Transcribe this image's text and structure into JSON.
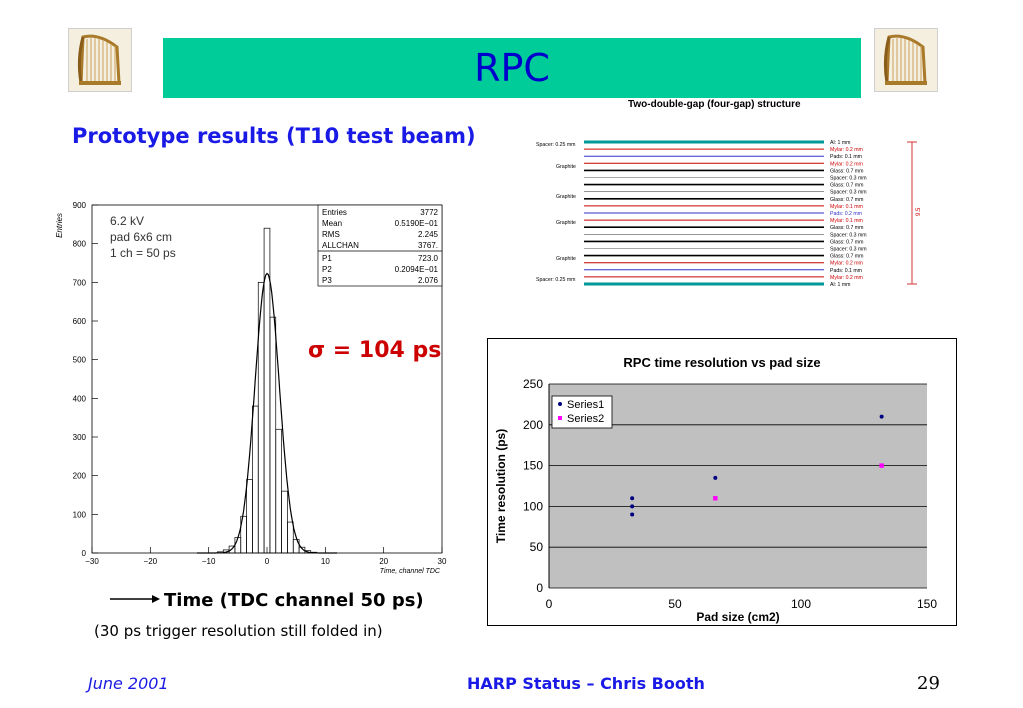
{
  "slide": {
    "title": "RPC",
    "subtitle": "Prototype results (T10 test beam)",
    "structure_title": "Two-double-gap (four-gap) structure",
    "sigma_text": "σ = 104 ps",
    "time_label": "Time (TDC channel 50 ps)",
    "time_sub": "(30 ps trigger resolution still folded in)",
    "footer": {
      "date": "June 2001",
      "center": "HARP Status – Chris Booth",
      "page": "29"
    }
  },
  "structure_diagram": {
    "left_labels": [
      "Spacer: 0.25 mm",
      "Graphite",
      "Graphite",
      "Graphite",
      "Graphite",
      "Spacer: 0.25 mm"
    ],
    "right_labels": [
      "Al: 1 mm",
      "Mylar: 0.2 mm",
      "Pads: 0.1 mm",
      "Mylar: 0.2 mm",
      "Glass: 0.7 mm",
      "Spacer: 0.3 mm",
      "Glass: 0.7 mm",
      "Spacer: 0.3 mm",
      "Glass: 0.7 mm",
      "Mylar: 0.1 mm",
      "Pads: 0.2 mm",
      "Mylar: 0.1 mm",
      "Glass: 0.7 mm",
      "Spacer: 0.3 mm",
      "Glass: 0.7 mm",
      "Spacer: 0.3 mm",
      "Glass: 0.7 mm",
      "Mylar: 0.2 mm",
      "Pads: 0.1 mm",
      "Mylar: 0.2 mm",
      "Al: 1 mm"
    ],
    "total_label": "9.5"
  },
  "chart_data": [
    {
      "type": "bar",
      "subtype": "histogram",
      "ylabel": "Entries",
      "xlabel": "Time, channel TDC",
      "xlim": [
        -30,
        30
      ],
      "ylim": [
        0,
        900
      ],
      "xticks": [
        "-30",
        "-20",
        "-10",
        "0",
        "10",
        "20",
        "30"
      ],
      "yticks": [
        "0",
        "100",
        "200",
        "300",
        "400",
        "500",
        "600",
        "700",
        "800",
        "900"
      ],
      "annotations": [
        "6.2 kV",
        "pad 6x6 cm",
        "1 ch = 50 ps"
      ],
      "stats": [
        {
          "name": "Entries",
          "value": "3772"
        },
        {
          "name": "Mean",
          "value": "0.5190E−01"
        },
        {
          "name": "RMS",
          "value": "2.245"
        },
        {
          "name": "ALLCHAN",
          "value": "3767."
        },
        {
          "name": "P1",
          "value": "723.0"
        },
        {
          "name": "P2",
          "value": "0.2094E−01"
        },
        {
          "name": "P3",
          "value": "2.076"
        }
      ],
      "bins": [
        {
          "x": -8,
          "y": 3
        },
        {
          "x": -7,
          "y": 8
        },
        {
          "x": -6,
          "y": 18
        },
        {
          "x": -5,
          "y": 40
        },
        {
          "x": -4,
          "y": 95
        },
        {
          "x": -3,
          "y": 190
        },
        {
          "x": -2,
          "y": 380
        },
        {
          "x": -1,
          "y": 700
        },
        {
          "x": 0,
          "y": 840
        },
        {
          "x": 1,
          "y": 610
        },
        {
          "x": 2,
          "y": 320
        },
        {
          "x": 3,
          "y": 160
        },
        {
          "x": 4,
          "y": 80
        },
        {
          "x": 5,
          "y": 35
        },
        {
          "x": 6,
          "y": 15
        },
        {
          "x": 7,
          "y": 6
        },
        {
          "x": 8,
          "y": 2
        }
      ],
      "fit": {
        "amplitude": 723.0,
        "mean": 0.02094,
        "sigma": 2.076
      }
    },
    {
      "type": "scatter",
      "title": "RPC time resolution vs pad size",
      "xlabel": "Pad size (cm2)",
      "ylabel": "Time resolution (ps)",
      "xlim": [
        0,
        150
      ],
      "ylim": [
        0,
        250
      ],
      "xticks": [
        "0",
        "50",
        "100",
        "150"
      ],
      "yticks": [
        "0",
        "50",
        "100",
        "150",
        "200",
        "250"
      ],
      "grid": true,
      "legend": "top-left",
      "series": [
        {
          "name": "Series1",
          "color": "#000080",
          "points": [
            {
              "x": 33,
              "y": 90
            },
            {
              "x": 33,
              "y": 100
            },
            {
              "x": 33,
              "y": 110
            },
            {
              "x": 66,
              "y": 135
            },
            {
              "x": 132,
              "y": 210
            }
          ]
        },
        {
          "name": "Series2",
          "color": "#ff00ff",
          "points": [
            {
              "x": 66,
              "y": 110
            },
            {
              "x": 132,
              "y": 150
            }
          ]
        }
      ]
    }
  ]
}
